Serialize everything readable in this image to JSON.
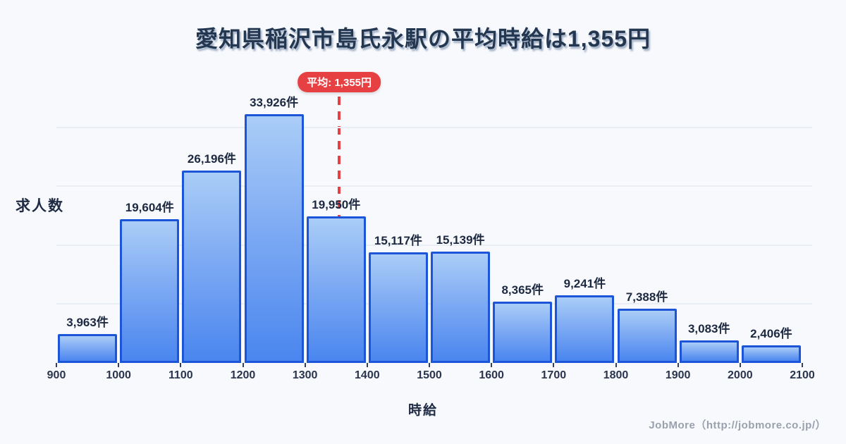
{
  "title": "愛知県稲沢市島氏永駅の平均時給は1,355円",
  "footer": {
    "credit": "JobMore（http://jobmore.co.jp/）"
  },
  "colors": {
    "background": "#f7f9fc",
    "title_text": "#243751",
    "bar_gradient_top": "#aacdf7",
    "bar_gradient_bottom": "#4a86ef",
    "bar_border": "#1d55d8",
    "average_accent": "#e74043",
    "gridline": "#e9edf4",
    "footer_text": "#9aa1ad"
  },
  "chart_data": {
    "type": "bar",
    "subtype": "histogram",
    "title": "愛知県稲沢市島氏永駅の平均時給は1,355円",
    "xlabel": "時給",
    "ylabel": "求人数",
    "x_bin_edges": [
      900,
      1000,
      1100,
      1200,
      1300,
      1400,
      1500,
      1600,
      1700,
      1800,
      1900,
      2000,
      2100
    ],
    "x_tick_labels": [
      "900",
      "1000",
      "1100",
      "1200",
      "1300",
      "1400",
      "1500",
      "1600",
      "1700",
      "1800",
      "1900",
      "2000",
      "2100"
    ],
    "categories": [
      "900-1000",
      "1000-1100",
      "1100-1200",
      "1200-1300",
      "1300-1400",
      "1400-1500",
      "1500-1600",
      "1600-1700",
      "1700-1800",
      "1800-1900",
      "1900-2000",
      "2000-2100"
    ],
    "values": [
      3963,
      19604,
      26196,
      33926,
      19950,
      15117,
      15139,
      8365,
      9241,
      7388,
      3083,
      2406
    ],
    "labels": [
      "3,963件",
      "19,604件",
      "26,196件",
      "33,926件",
      "19,950件",
      "15,117件",
      "15,139件",
      "8,365件",
      "9,241件",
      "7,388件",
      "3,083件",
      "2,406件"
    ],
    "average": {
      "value": 1355,
      "label": "平均: 1,355円"
    },
    "x_range": [
      900,
      2100
    ],
    "ymax": 33926,
    "gridline_values": [
      8000,
      16000,
      24000,
      32000
    ],
    "grid": true,
    "legend_position": "none"
  }
}
